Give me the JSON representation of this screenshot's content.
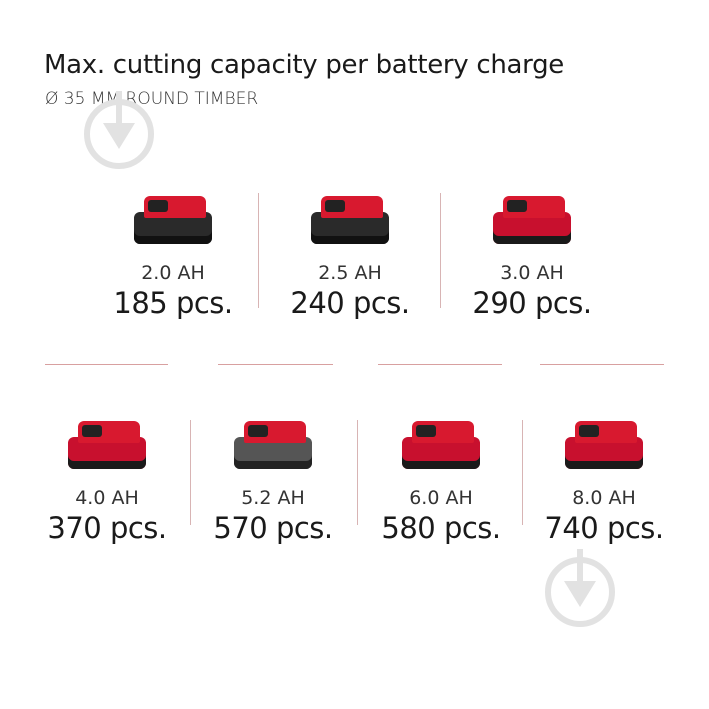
{
  "title": "Max. cutting capacity per battery charge",
  "subtitle": "Ø 35 MM ROUND TIMBER",
  "top_row": [
    {
      "capacity": "2.0 AH",
      "pieces": "185 pcs.",
      "style": "dark"
    },
    {
      "capacity": "2.5 AH",
      "pieces": "240 pcs.",
      "style": "dark"
    },
    {
      "capacity": "3.0 AH",
      "pieces": "290 pcs.",
      "style": "red"
    }
  ],
  "bottom_row": [
    {
      "capacity": "4.0 AH",
      "pieces": "370 pcs.",
      "style": "red"
    },
    {
      "capacity": "5.2 AH",
      "pieces": "570 pcs.",
      "style": "grey"
    },
    {
      "capacity": "6.0 AH",
      "pieces": "580 pcs.",
      "style": "red"
    },
    {
      "capacity": "8.0 AH",
      "pieces": "740 pcs.",
      "style": "red"
    }
  ],
  "colors": {
    "brand_red": "#c8102e",
    "divider": "#d8a0a0"
  }
}
